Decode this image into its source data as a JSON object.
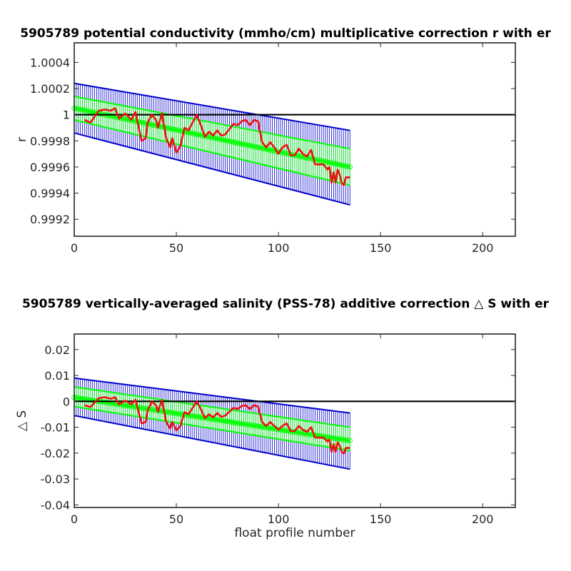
{
  "chart_data": [
    {
      "type": "line",
      "title": "5905789 potential conductivity (mmho/cm) multiplicative correction r with er",
      "xlabel": "",
      "ylabel": "r",
      "xlim": [
        0,
        216
      ],
      "ylim": [
        0.99907,
        1.00055
      ],
      "xticks": [
        "0",
        "50",
        "100",
        "150",
        "200"
      ],
      "yticks": [
        "0.9992",
        "0.9994",
        "0.9996",
        "0.9998",
        "1",
        "1.0002",
        "1.0004"
      ],
      "grid": false,
      "reference_line": 1.0,
      "series": [
        {
          "role": "fit-line",
          "color": "#00ff00",
          "x": [
            0,
            135
          ],
          "y": [
            1.00005,
            0.9996
          ]
        },
        {
          "role": "fit-band",
          "color": "#00ff00",
          "x": [
            0,
            135
          ],
          "upper": [
            1.00014,
            0.99974
          ],
          "lower": [
            0.99996,
            0.99946
          ]
        },
        {
          "role": "error-band",
          "color": "#0000cc",
          "x": [
            0,
            135
          ],
          "upper": [
            1.00024,
            0.99988
          ],
          "lower": [
            0.99986,
            0.99931
          ]
        },
        {
          "role": "profile-correction",
          "color": "#ee1111",
          "x": [
            5,
            8,
            12,
            15,
            18,
            20,
            22,
            25,
            28,
            30,
            33,
            35,
            36,
            38,
            40,
            41,
            43,
            45,
            47,
            48,
            50,
            52,
            54,
            56,
            58,
            60,
            62,
            64,
            66,
            68,
            70,
            72,
            74,
            76,
            78,
            80,
            82,
            84,
            86,
            88,
            90,
            92,
            94,
            96,
            98,
            100,
            102,
            104,
            106,
            108,
            110,
            112,
            114,
            116,
            118,
            120,
            122,
            124,
            125,
            126,
            127,
            128,
            129,
            130,
            131,
            132,
            133,
            134,
            135
          ],
          "y": [
            0.99996,
            0.99994,
            1.00003,
            1.00004,
            1.00003,
            1.00005,
            0.99997,
            1.00001,
            0.99996,
            1.00002,
            0.9998,
            0.99982,
            0.99994,
            1.0,
            0.99996,
            0.9999,
            1.00001,
            0.99982,
            0.99975,
            0.99982,
            0.99971,
            0.99976,
            0.9999,
            0.99988,
            0.99994,
            1.0,
            0.99992,
            0.99983,
            0.99987,
            0.99984,
            0.99988,
            0.99984,
            0.99985,
            0.99989,
            0.99993,
            0.99992,
            0.99995,
            0.99996,
            0.99992,
            0.99996,
            0.99995,
            0.99979,
            0.99975,
            0.99979,
            0.99975,
            0.9997,
            0.99975,
            0.99977,
            0.99969,
            0.99969,
            0.99974,
            0.9997,
            0.99968,
            0.99973,
            0.99962,
            0.99962,
            0.99962,
            0.99958,
            0.9996,
            0.99948,
            0.99956,
            0.99948,
            0.99958,
            0.99954,
            0.99948,
            0.99946,
            0.99952,
            0.99952,
            0.99952
          ]
        }
      ]
    },
    {
      "type": "line",
      "title": "5905789 vertically-averaged salinity (PSS-78) additive correction △ S with er",
      "xlabel": "float profile number",
      "ylabel": "△ S",
      "xlim": [
        0,
        216
      ],
      "ylim": [
        -0.041,
        0.026
      ],
      "xticks": [
        "0",
        "50",
        "100",
        "150",
        "200"
      ],
      "yticks": [
        "-0.04",
        "-0.03",
        "-0.02",
        "-0.01",
        "0",
        "0.01",
        "0.02"
      ],
      "grid": false,
      "reference_line": 0,
      "series": [
        {
          "role": "fit-line",
          "color": "#00ff00",
          "x": [
            0,
            135
          ],
          "y": [
            0.0015,
            -0.0152
          ]
        },
        {
          "role": "fit-band",
          "color": "#00ff00",
          "x": [
            0,
            135
          ],
          "upper": [
            0.0056,
            -0.01
          ],
          "lower": [
            -0.002,
            -0.019
          ]
        },
        {
          "role": "error-band",
          "color": "#0000cc",
          "x": [
            0,
            135
          ],
          "upper": [
            0.009,
            -0.0045
          ],
          "lower": [
            -0.0055,
            -0.0262
          ]
        },
        {
          "role": "profile-correction",
          "color": "#ee1111",
          "x": [
            5,
            8,
            12,
            15,
            18,
            20,
            22,
            25,
            28,
            30,
            33,
            35,
            36,
            38,
            40,
            41,
            43,
            45,
            47,
            48,
            50,
            52,
            54,
            56,
            58,
            60,
            62,
            64,
            66,
            68,
            70,
            72,
            74,
            76,
            78,
            80,
            82,
            84,
            86,
            88,
            90,
            92,
            94,
            96,
            98,
            100,
            102,
            104,
            106,
            108,
            110,
            112,
            114,
            116,
            118,
            120,
            122,
            124,
            125,
            126,
            127,
            128,
            129,
            130,
            131,
            132,
            133,
            134,
            135
          ],
          "y": [
            -0.0015,
            -0.0022,
            0.0012,
            0.0016,
            0.001,
            0.0016,
            -0.0012,
            0.0003,
            -0.0012,
            0.0006,
            -0.0085,
            -0.008,
            -0.0035,
            0.0,
            -0.0015,
            -0.004,
            0.0005,
            -0.008,
            -0.0105,
            -0.008,
            -0.0112,
            -0.0095,
            -0.0042,
            -0.005,
            -0.0025,
            0.0,
            -0.003,
            -0.0065,
            -0.005,
            -0.0062,
            -0.0045,
            -0.006,
            -0.0055,
            -0.004,
            -0.0025,
            -0.003,
            -0.0018,
            -0.0015,
            -0.003,
            -0.0015,
            -0.002,
            -0.008,
            -0.0095,
            -0.008,
            -0.0095,
            -0.011,
            -0.0095,
            -0.0085,
            -0.0115,
            -0.0115,
            -0.0095,
            -0.011,
            -0.0118,
            -0.01,
            -0.014,
            -0.014,
            -0.014,
            -0.0155,
            -0.0148,
            -0.0195,
            -0.0165,
            -0.0195,
            -0.0158,
            -0.0172,
            -0.0195,
            -0.0202,
            -0.018,
            -0.018,
            -0.018
          ]
        }
      ]
    }
  ]
}
